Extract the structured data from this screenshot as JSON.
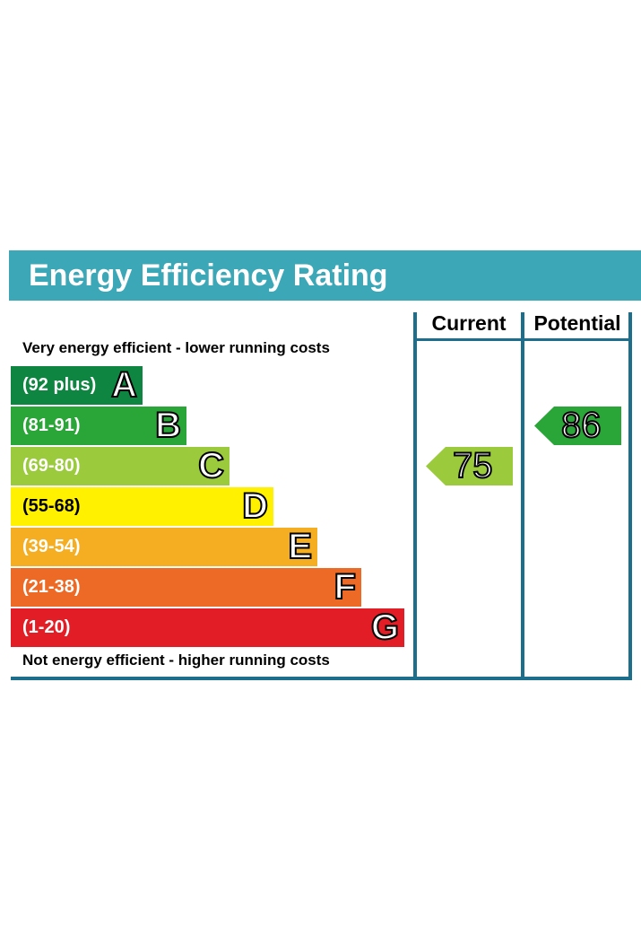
{
  "title": "Energy Efficiency Rating",
  "columns": {
    "current": "Current",
    "potential": "Potential"
  },
  "top_caption": "Very energy efficient - lower running costs",
  "bottom_caption": "Not energy efficient - higher running costs",
  "colors": {
    "header": "#3ba7b7",
    "frame": "#1c6e8c",
    "A": "#0e8540",
    "B": "#2aa537",
    "C": "#9bcb3c",
    "D": "#fff100",
    "E": "#f5ad22",
    "F": "#ec6a25",
    "G": "#e31d26"
  },
  "chart_data": {
    "type": "bar",
    "title": "Energy Efficiency Rating",
    "bands": [
      {
        "letter": "A",
        "range": "(92 plus)",
        "color": "#0e8540"
      },
      {
        "letter": "B",
        "range": "(81-91)",
        "color": "#2aa537"
      },
      {
        "letter": "C",
        "range": "(69-80)",
        "color": "#9bcb3c"
      },
      {
        "letter": "D",
        "range": "(55-68)",
        "color": "#fff100"
      },
      {
        "letter": "E",
        "range": "(39-54)",
        "color": "#f5ad22"
      },
      {
        "letter": "F",
        "range": "(21-38)",
        "color": "#ec6a25"
      },
      {
        "letter": "G",
        "range": "(1-20)",
        "color": "#e31d26"
      }
    ],
    "current": {
      "value": "75",
      "band": "C",
      "color": "#9bcb3c"
    },
    "potential": {
      "value": "86",
      "band": "B",
      "color": "#2aa537"
    }
  }
}
